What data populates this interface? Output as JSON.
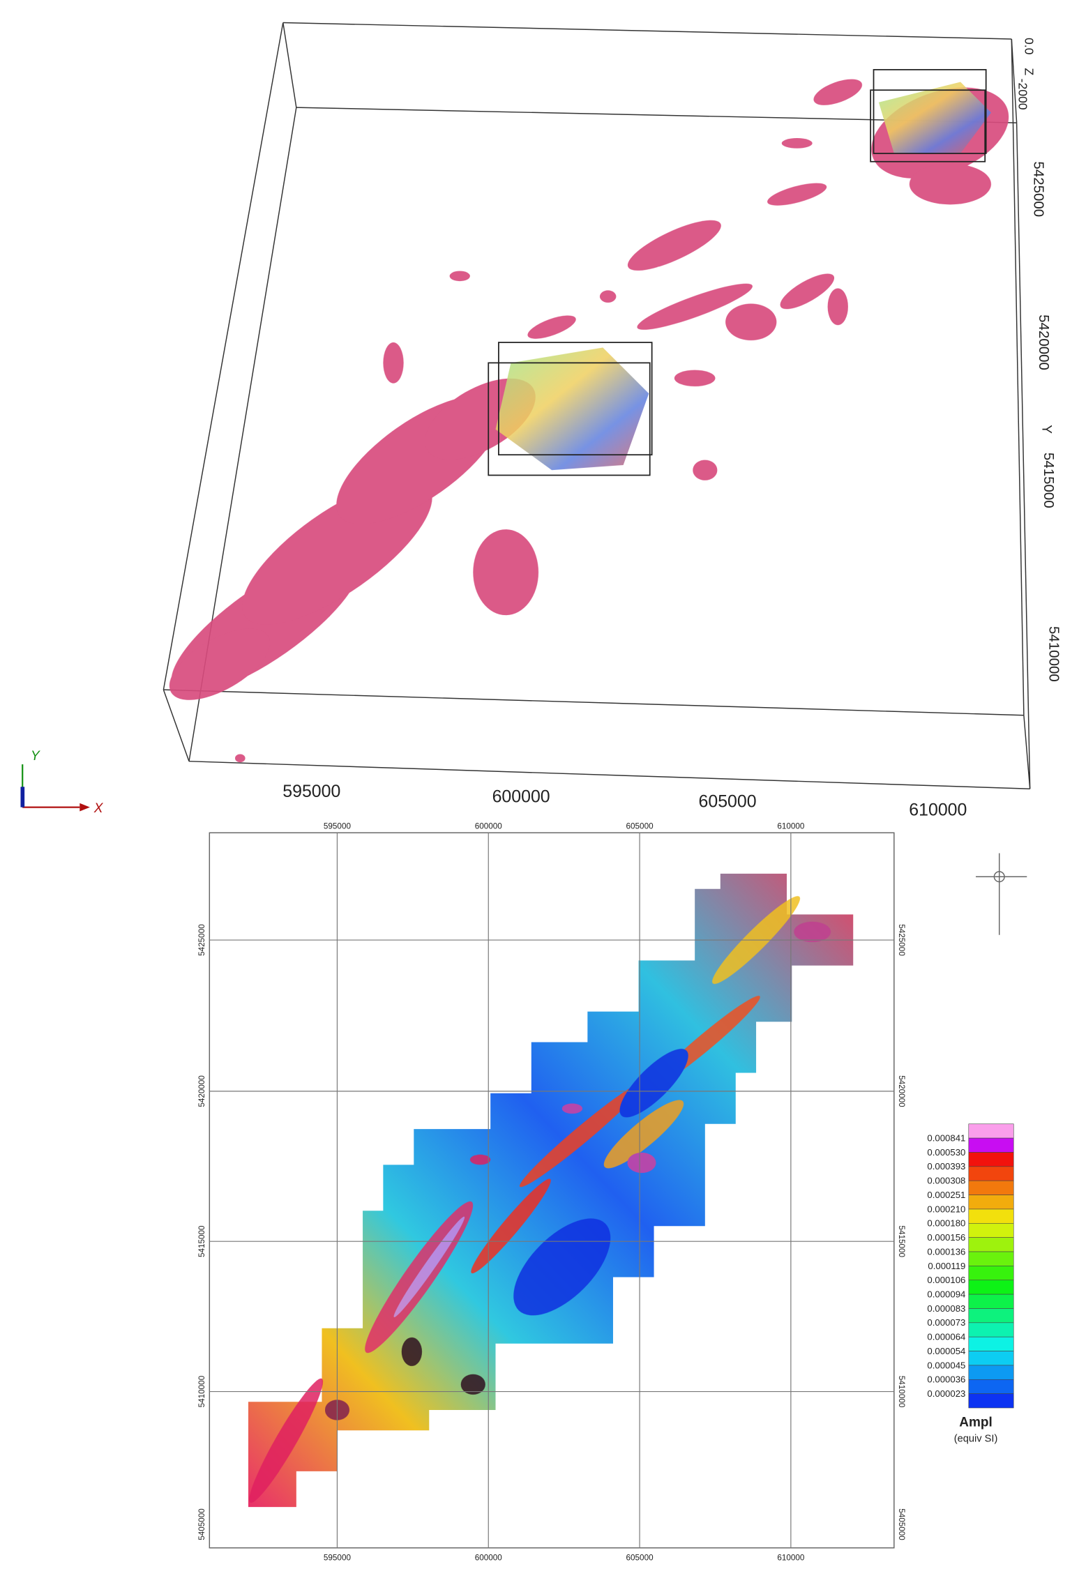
{
  "view3d": {
    "x_labels": [
      "595000",
      "600000",
      "605000",
      "610000"
    ],
    "y_labels": [
      "5425000",
      "5420000",
      "5415000",
      "5410000"
    ],
    "y_axis": "Y",
    "z_labels": [
      "0.0",
      "-2000"
    ],
    "z_axis": "Z",
    "triad": {
      "y": "Y",
      "x": "X"
    }
  },
  "map": {
    "top_labels": [
      "595000",
      "600000",
      "605000",
      "610000"
    ],
    "bottom_labels": [
      "595000",
      "600000",
      "605000",
      "610000"
    ],
    "left_labels": [
      "5425000",
      "5420000",
      "5415000",
      "5410000",
      "5405000"
    ],
    "right_labels": [
      "5425000",
      "5420000",
      "5415000",
      "5410000",
      "5405000"
    ]
  },
  "legend": {
    "labels": [
      "0.000841",
      "0.000530",
      "0.000393",
      "0.000308",
      "0.000251",
      "0.000210",
      "0.000180",
      "0.000156",
      "0.000136",
      "0.000119",
      "0.000106",
      "0.000094",
      "0.000083",
      "0.000073",
      "0.000064",
      "0.000054",
      "0.000045",
      "0.000036",
      "0.000023"
    ],
    "title": "Ampl",
    "unit": "(equiv SI)"
  }
}
